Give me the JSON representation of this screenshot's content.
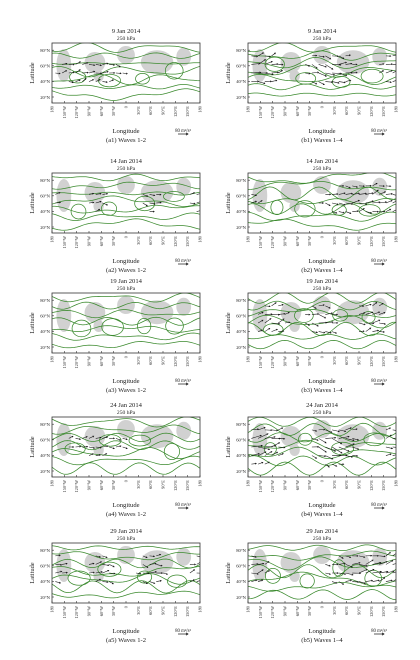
{
  "figure": {
    "panels": [
      {
        "id": "a1",
        "date": "9 Jan 2014",
        "level": "250 hPa",
        "caption": "(a1) Waves 1-2",
        "intensity": 0.35
      },
      {
        "id": "b1",
        "date": "9 Jan 2014",
        "level": "250 hPa",
        "caption": "(b1) Waves 1–4",
        "intensity": 0.75
      },
      {
        "id": "a2",
        "date": "14 Jan 2014",
        "level": "250 hPa",
        "caption": "(a2) Waves 1-2",
        "intensity": 0.3
      },
      {
        "id": "b2",
        "date": "14 Jan 2014",
        "level": "250 hPa",
        "caption": "(b2) Waves 1–4",
        "intensity": 0.55
      },
      {
        "id": "a3",
        "date": "19 Jan 2014",
        "level": "250 hPa",
        "caption": "(a3) Waves 1-2",
        "intensity": 0.15
      },
      {
        "id": "b3",
        "date": "19 Jan 2014",
        "level": "250 hPa",
        "caption": "(b3) Waves 1–4",
        "intensity": 0.6
      },
      {
        "id": "a4",
        "date": "24 Jan 2014",
        "level": "250 hPa",
        "caption": "(a4) Waves 1-2",
        "intensity": 0.3
      },
      {
        "id": "b4",
        "date": "24 Jan 2014",
        "level": "250 hPa",
        "caption": "(b4) Waves 1–4",
        "intensity": 1.0
      },
      {
        "id": "a5",
        "date": "29 Jan 2014",
        "level": "250 hPa",
        "caption": "(a5) Waves 1-2",
        "intensity": 0.45
      },
      {
        "id": "b5",
        "date": "29 Jan 2014",
        "level": "250 hPa",
        "caption": "(b5) Waves 1–4",
        "intensity": 0.7
      }
    ],
    "y_label": "Latitude",
    "x_label": "Longitude",
    "y_ticks": [
      "80°N",
      "60°N",
      "40°N",
      "20°N"
    ],
    "x_ticks": [
      "180",
      "150°W",
      "120°W",
      "90°W",
      "60°W",
      "30°W",
      "0",
      "30°E",
      "60°E",
      "90°E",
      "120°E",
      "150°E",
      "180"
    ],
    "reference_vector": "80 m²/s²",
    "colors": {
      "contour": "#3b8a2e",
      "shading": "#c9c9c9",
      "arrow": "#111111",
      "frame": "#333333"
    }
  }
}
